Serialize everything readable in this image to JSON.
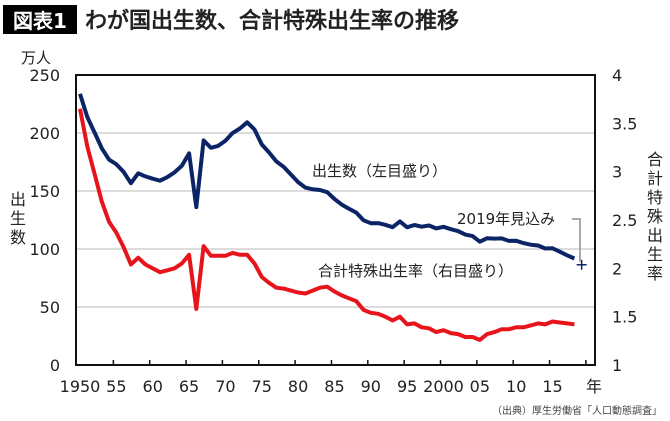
{
  "header": {
    "badge": "図表1",
    "title": "わが国出生数、合計特殊出生率の推移"
  },
  "source": "（出典）厚生労働省「人口動態調査」",
  "chart_data": {
    "type": "line",
    "title": "わが国出生数、合計特殊出生率の推移",
    "xlabel": "年",
    "ylabel_left": "出生数",
    "ylabel_left_unit": "万人",
    "ylabel_right": "合計特殊出生率",
    "xlim": [
      1950,
      2019
    ],
    "ylim_left": [
      0,
      250
    ],
    "ylim_right": [
      1,
      4
    ],
    "yticks_left": [
      "0",
      "50",
      "100",
      "150",
      "200",
      "250"
    ],
    "yticks_right": [
      "1",
      "1.5",
      "2",
      "2.5",
      "3",
      "3.5",
      "4"
    ],
    "xtick_labels": [
      {
        "year": 1950,
        "label": "1950"
      },
      {
        "year": 1955,
        "label": "55"
      },
      {
        "year": 1960,
        "label": "60"
      },
      {
        "year": 1965,
        "label": "65"
      },
      {
        "year": 1970,
        "label": "70"
      },
      {
        "year": 1975,
        "label": "75"
      },
      {
        "year": 1980,
        "label": "80"
      },
      {
        "year": 1985,
        "label": "85"
      },
      {
        "year": 1990,
        "label": "90"
      },
      {
        "year": 1995,
        "label": "95"
      },
      {
        "year": 2000,
        "label": "2000"
      },
      {
        "year": 2005,
        "label": "05"
      },
      {
        "year": 2010,
        "label": "10"
      },
      {
        "year": 2015,
        "label": "15"
      }
    ],
    "grid": "horizontal",
    "x": [
      1950,
      1951,
      1952,
      1953,
      1954,
      1955,
      1956,
      1957,
      1958,
      1959,
      1960,
      1961,
      1962,
      1963,
      1964,
      1965,
      1966,
      1967,
      1968,
      1969,
      1970,
      1971,
      1972,
      1973,
      1974,
      1975,
      1976,
      1977,
      1978,
      1979,
      1980,
      1981,
      1982,
      1983,
      1984,
      1985,
      1986,
      1987,
      1988,
      1989,
      1990,
      1991,
      1992,
      1993,
      1994,
      1995,
      1996,
      1997,
      1998,
      1999,
      2000,
      2001,
      2002,
      2003,
      2004,
      2005,
      2006,
      2007,
      2008,
      2009,
      2010,
      2011,
      2012,
      2013,
      2014,
      2015,
      2016,
      2017,
      2018
    ],
    "series": [
      {
        "name": "出生数（左目盛り）",
        "axis": "left",
        "color": "#0b2466",
        "values": [
          233.8,
          213.8,
          200.5,
          186.8,
          177.0,
          173.1,
          166.5,
          156.7,
          165.3,
          162.6,
          160.6,
          158.9,
          161.9,
          166.0,
          171.7,
          182.4,
          136.1,
          193.6,
          187.2,
          188.9,
          193.4,
          200.1,
          203.9,
          209.2,
          203.0,
          190.1,
          183.3,
          175.5,
          170.9,
          164.3,
          157.7,
          152.9,
          151.5,
          150.9,
          149.0,
          143.2,
          138.3,
          134.7,
          131.4,
          124.7,
          122.2,
          122.3,
          120.9,
          118.8,
          123.8,
          118.7,
          120.7,
          119.2,
          120.3,
          117.8,
          119.1,
          117.1,
          115.4,
          112.4,
          111.1,
          106.3,
          109.3,
          109.0,
          109.1,
          107.0,
          107.1,
          105.1,
          103.7,
          103.0,
          100.4,
          100.6,
          97.7,
          94.6,
          91.8
        ]
      },
      {
        "name": "合計特殊出生率（右目盛り）",
        "axis": "right",
        "color": "#e8141b",
        "values": [
          3.65,
          3.26,
          2.98,
          2.69,
          2.48,
          2.37,
          2.22,
          2.04,
          2.11,
          2.04,
          2.0,
          1.96,
          1.98,
          2.0,
          2.05,
          2.14,
          1.58,
          2.23,
          2.13,
          2.13,
          2.13,
          2.16,
          2.14,
          2.14,
          2.05,
          1.91,
          1.85,
          1.8,
          1.79,
          1.77,
          1.75,
          1.74,
          1.77,
          1.8,
          1.81,
          1.76,
          1.72,
          1.69,
          1.66,
          1.57,
          1.54,
          1.53,
          1.5,
          1.46,
          1.5,
          1.42,
          1.43,
          1.39,
          1.38,
          1.34,
          1.36,
          1.33,
          1.32,
          1.29,
          1.29,
          1.26,
          1.32,
          1.34,
          1.37,
          1.37,
          1.39,
          1.39,
          1.41,
          1.43,
          1.42,
          1.45,
          1.44,
          1.43,
          1.42
        ]
      }
    ],
    "annotation": {
      "label": "2019年見込み",
      "year": 2019,
      "value": 86.4,
      "axis": "left"
    }
  }
}
